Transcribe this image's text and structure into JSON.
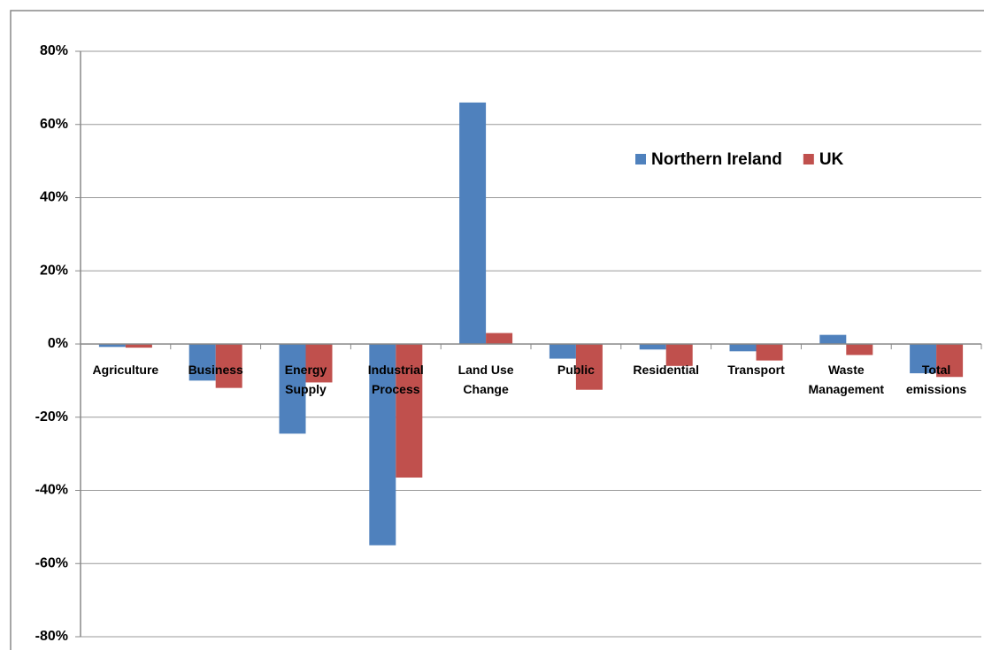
{
  "chart_data": {
    "type": "bar",
    "categories": [
      "Agriculture",
      "Business",
      "Energy Supply",
      "Industrial Process",
      "Land Use Change",
      "Public",
      "Residential",
      "Transport",
      "Waste Management",
      "Total emissions"
    ],
    "series": [
      {
        "name": "Northern Ireland",
        "color": "#4f81bd",
        "values": [
          -0.8,
          -10,
          -24.5,
          -55,
          66,
          -4,
          -1.5,
          -2,
          2.5,
          -8
        ]
      },
      {
        "name": "UK",
        "color": "#c0504d",
        "values": [
          -1,
          -12,
          -10.5,
          -36.5,
          3,
          -12.5,
          -6,
          -4.5,
          -3,
          -9
        ]
      }
    ],
    "ylim": [
      -80,
      80
    ],
    "yticks": [
      {
        "value": -80,
        "label": "-80%"
      },
      {
        "value": -60,
        "label": "-60%"
      },
      {
        "value": -40,
        "label": "-40%"
      },
      {
        "value": -20,
        "label": "-20%"
      },
      {
        "value": 0,
        "label": "0%"
      },
      {
        "value": 20,
        "label": "20%"
      },
      {
        "value": 40,
        "label": "40%"
      },
      {
        "value": 60,
        "label": "60%"
      },
      {
        "value": 80,
        "label": "80%"
      }
    ],
    "grid": true
  }
}
